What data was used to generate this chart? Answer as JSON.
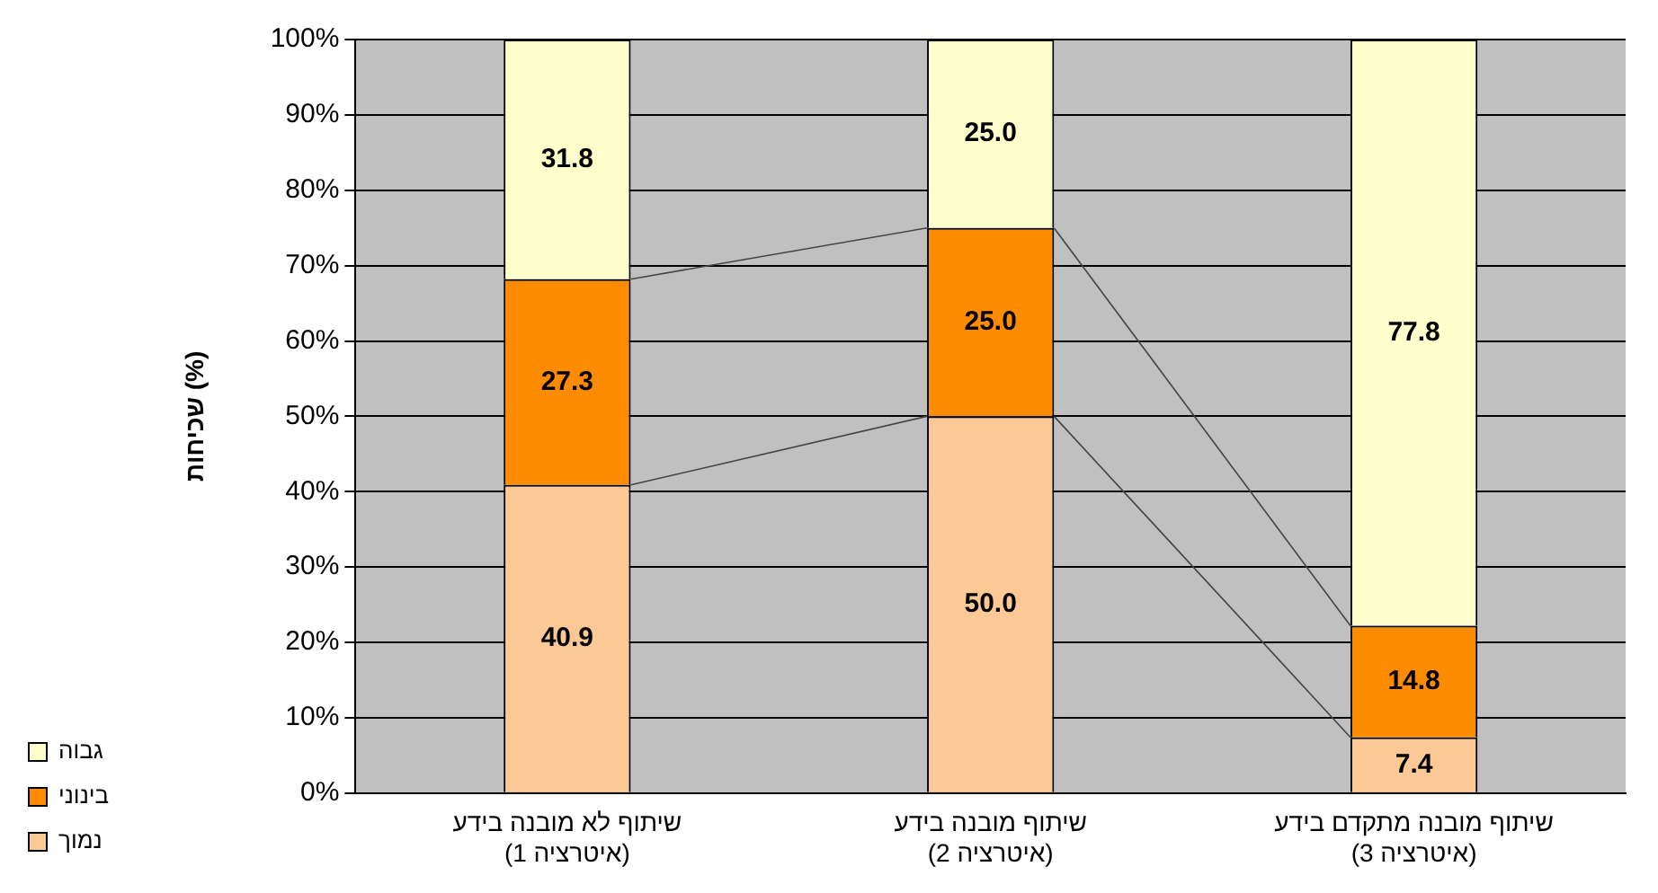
{
  "chart_data": {
    "type": "bar",
    "stacked": true,
    "ylabel": "שכיחות (%)",
    "categories": [
      "שיתוף לא מובנה בידע\n(איטרציה 1)",
      "שיתוף מובנה בידע\n(איטרציה 2)",
      "שיתוף מובנה מתקדם בידע\n(איטרציה 3)"
    ],
    "series": [
      {
        "name": "נמוך",
        "color": "#fcc896",
        "values": [
          40.9,
          50,
          7.4
        ],
        "value_labels": [
          "40.9",
          "50.0",
          "7.4"
        ]
      },
      {
        "name": "בינוני",
        "color": "#ff8c00",
        "values": [
          27.3,
          25,
          14.8
        ],
        "value_labels": [
          "27.3",
          "25.0",
          "14.8"
        ]
      },
      {
        "name": "גבוה",
        "color": "#ffffcc",
        "values": [
          31.8,
          25,
          77.8
        ],
        "value_labels": [
          "31.8",
          "25.0",
          "77.8"
        ]
      }
    ],
    "ylim": [
      0,
      100
    ],
    "yticks": [
      {
        "value": 0,
        "label": "0%"
      },
      {
        "value": 10,
        "label": "10%"
      },
      {
        "value": 20,
        "label": "20%"
      },
      {
        "value": 30,
        "label": "30%"
      },
      {
        "value": 40,
        "label": "40%"
      },
      {
        "value": 50,
        "label": "50%"
      },
      {
        "value": 60,
        "label": "60%"
      },
      {
        "value": 70,
        "label": "70%"
      },
      {
        "value": 80,
        "label": "80%"
      },
      {
        "value": 90,
        "label": "90%"
      },
      {
        "value": 100,
        "label": "100%"
      }
    ],
    "grid": "y",
    "legend": "bottom left"
  }
}
